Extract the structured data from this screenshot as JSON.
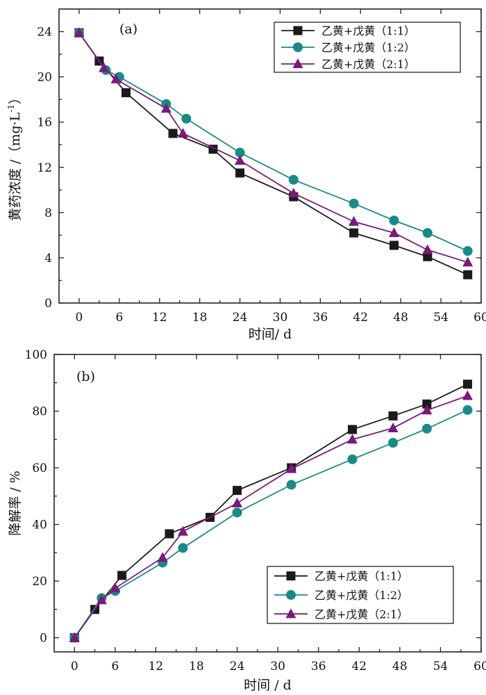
{
  "chart_data": [
    {
      "type": "line",
      "panel_label": "(a)",
      "xlabel": "时间/ d",
      "ylabel": "黄药浓度 /（mg·L",
      "ylabel_sup": "-1",
      "ylabel_close": "）",
      "xlim": [
        -3,
        60
      ],
      "ylim": [
        0,
        26
      ],
      "xticks": [
        0,
        6,
        12,
        18,
        24,
        30,
        36,
        42,
        48,
        54,
        60
      ],
      "yticks": [
        0,
        4,
        8,
        12,
        16,
        20,
        24
      ],
      "legend_position": "top-right",
      "series": [
        {
          "name": "乙黄+戊黄（1:1）",
          "color": "#1a1a1a",
          "marker": "square",
          "x": [
            0,
            3,
            7,
            14,
            20,
            24,
            32,
            41,
            47,
            52,
            58
          ],
          "y": [
            23.9,
            21.4,
            18.6,
            15.0,
            13.6,
            11.5,
            9.4,
            6.2,
            5.1,
            4.1,
            2.5
          ]
        },
        {
          "name": "乙黄+戊黄（1:2）",
          "color": "#1a8a86",
          "marker": "circle",
          "x": [
            0,
            4,
            6,
            13,
            16,
            24,
            32,
            41,
            47,
            52,
            58
          ],
          "y": [
            23.9,
            20.6,
            20.0,
            17.6,
            16.3,
            13.3,
            10.9,
            8.8,
            7.3,
            6.2,
            4.6
          ]
        },
        {
          "name": "乙黄+戊黄（2:1）",
          "color": "#7a1a7a",
          "marker": "triangle",
          "x": [
            0,
            3.7,
            5.5,
            13,
            15.5,
            24,
            32,
            41,
            47,
            52,
            58
          ],
          "y": [
            23.9,
            20.8,
            19.8,
            17.2,
            15.0,
            12.6,
            9.7,
            7.2,
            6.2,
            4.7,
            3.6
          ]
        }
      ]
    },
    {
      "type": "line",
      "panel_label": "(b)",
      "xlabel": "时间 / d",
      "ylabel": "降解率 / %",
      "xlim": [
        -3,
        60
      ],
      "ylim": [
        -5,
        100
      ],
      "xticks": [
        0,
        6,
        12,
        18,
        24,
        30,
        36,
        42,
        48,
        54,
        60
      ],
      "yticks": [
        0,
        20,
        40,
        60,
        80,
        100
      ],
      "legend_position": "bottom-right",
      "series": [
        {
          "name": "乙黄+戊黄（1:1）",
          "color": "#1a1a1a",
          "marker": "square",
          "x": [
            0,
            3,
            7,
            14,
            20,
            24,
            32,
            41,
            47,
            52,
            58
          ],
          "y": [
            0,
            10,
            22,
            36.7,
            42.5,
            52,
            60,
            73.5,
            78.3,
            82.5,
            89.5
          ]
        },
        {
          "name": "乙黄+戊黄（1:2）",
          "color": "#1a8a86",
          "marker": "circle",
          "x": [
            0,
            4,
            6,
            13,
            16,
            24,
            32,
            41,
            47,
            52,
            58
          ],
          "y": [
            0,
            14,
            16.5,
            26.5,
            31.7,
            44.2,
            54,
            63,
            68.8,
            73.8,
            80.4
          ]
        },
        {
          "name": "乙黄+戊黄（2:1）",
          "color": "#7a1a7a",
          "marker": "triangle",
          "x": [
            0,
            4,
            6,
            13,
            16,
            24,
            32,
            41,
            47,
            52,
            58
          ],
          "y": [
            0,
            13.3,
            17.5,
            28.3,
            37.5,
            47.5,
            59.6,
            70,
            74,
            80.3,
            85.4
          ]
        }
      ]
    }
  ]
}
